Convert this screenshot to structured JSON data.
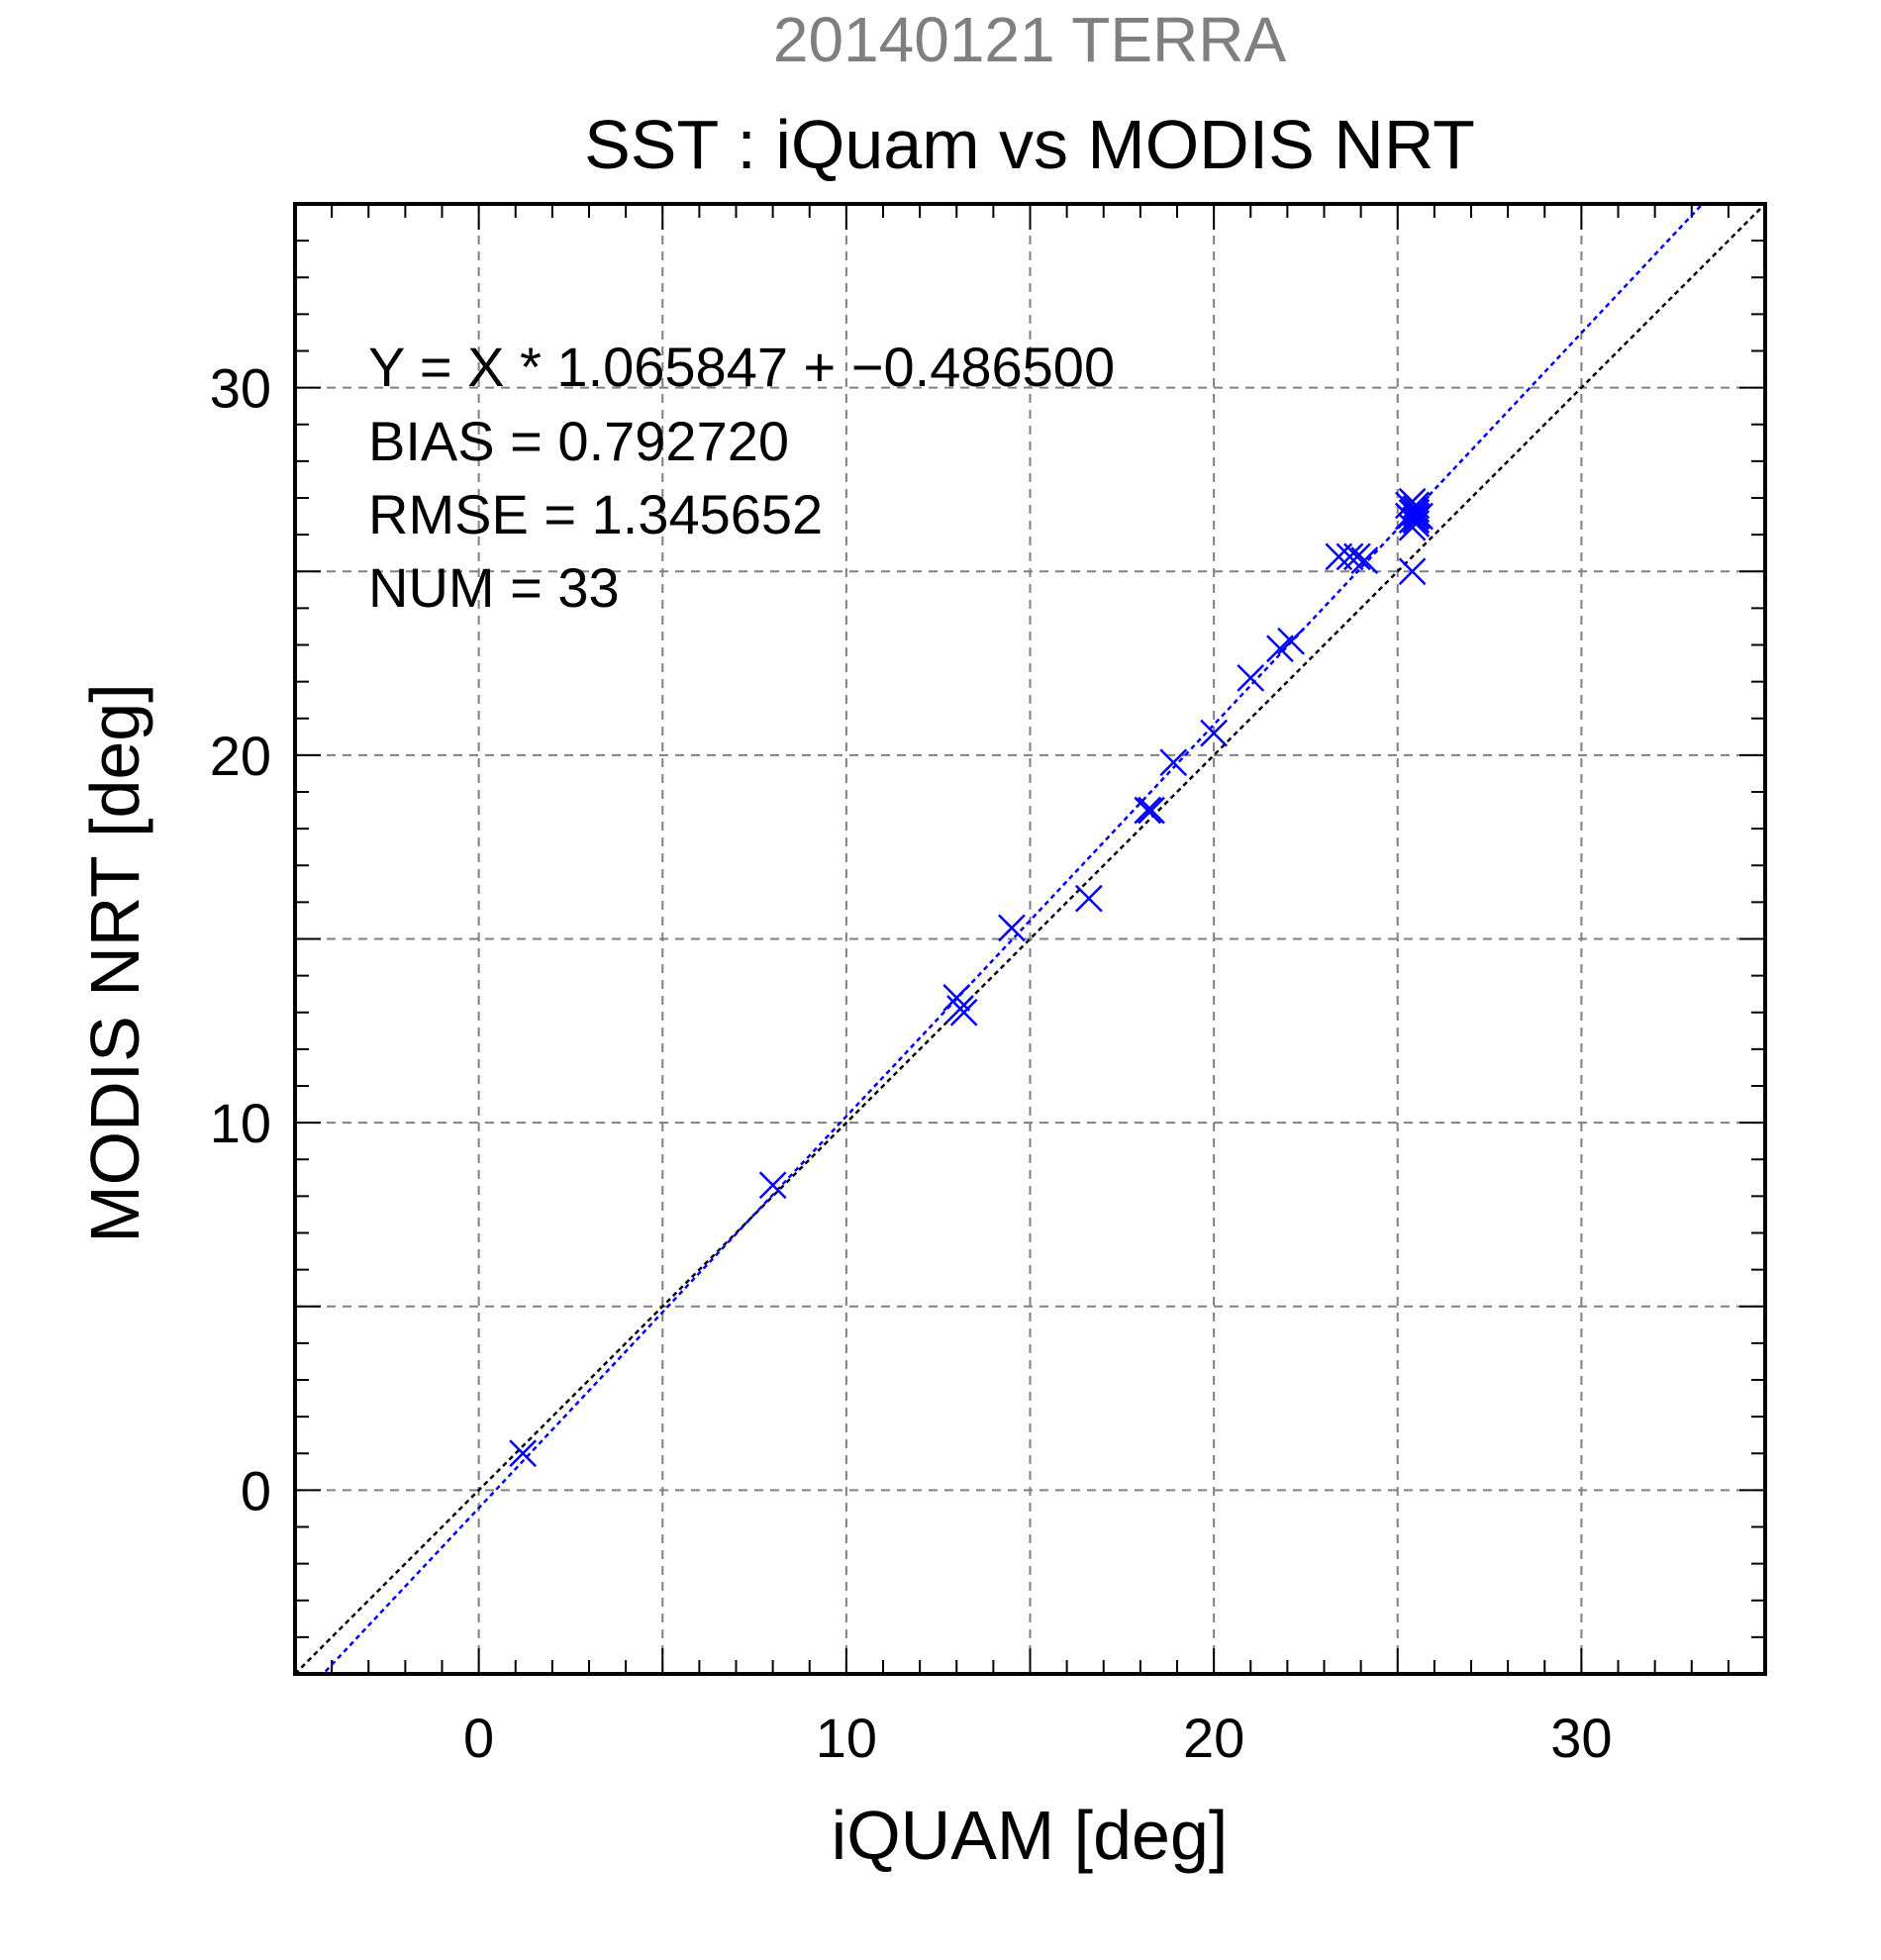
{
  "chart_data": {
    "type": "scatter",
    "header": "20140121 TERRA",
    "title": "SST : iQuam vs MODIS NRT",
    "xlabel": "iQUAM [deg]",
    "ylabel": "MODIS NRT [deg]",
    "xlim": [
      -5,
      35
    ],
    "ylim": [
      -5,
      35
    ],
    "xticks": [
      "0",
      "10",
      "20",
      "30"
    ],
    "yticks": [
      "0",
      "10",
      "20",
      "30"
    ],
    "xtick_values": [
      0,
      10,
      20,
      30
    ],
    "ytick_values": [
      0,
      10,
      20,
      30
    ],
    "grid": true,
    "stats": {
      "equation": "Y = X * 1.065847 + −0.486500",
      "bias": "BIAS = 0.792720",
      "rmse": "RMSE = 1.345652",
      "num": "NUM = 33"
    },
    "fit": {
      "slope": 1.065847,
      "intercept": -0.4865
    },
    "series": [
      {
        "marker": "x",
        "color": "#0000ff",
        "x": [
          1.2,
          8.0,
          13.0,
          13.1,
          13.2,
          14.5,
          16.6,
          18.2,
          18.3,
          18.9,
          20.0,
          21.0,
          21.8,
          22.1,
          23.4,
          23.7,
          23.9,
          24.1,
          25.3,
          25.3,
          25.4,
          25.4,
          25.4,
          25.5,
          25.5,
          25.5,
          25.5,
          25.4,
          25.5,
          25.6,
          25.5,
          25.4,
          25.5
        ],
        "y": [
          1.0,
          8.3,
          13.4,
          13.1,
          13.0,
          15.3,
          16.1,
          18.5,
          18.5,
          19.8,
          20.6,
          22.1,
          22.9,
          23.1,
          25.4,
          25.4,
          25.4,
          25.3,
          26.5,
          26.8,
          26.9,
          26.6,
          26.4,
          26.7,
          26.5,
          26.3,
          26.6,
          26.2,
          26.4,
          26.5,
          26.8,
          25.0,
          26.6
        ]
      }
    ]
  },
  "colors": {
    "header": "#7f7f7f",
    "points": "#0000ff",
    "fit_line": "#0000ff",
    "identity_line": "#000000",
    "grid": "#808080"
  }
}
